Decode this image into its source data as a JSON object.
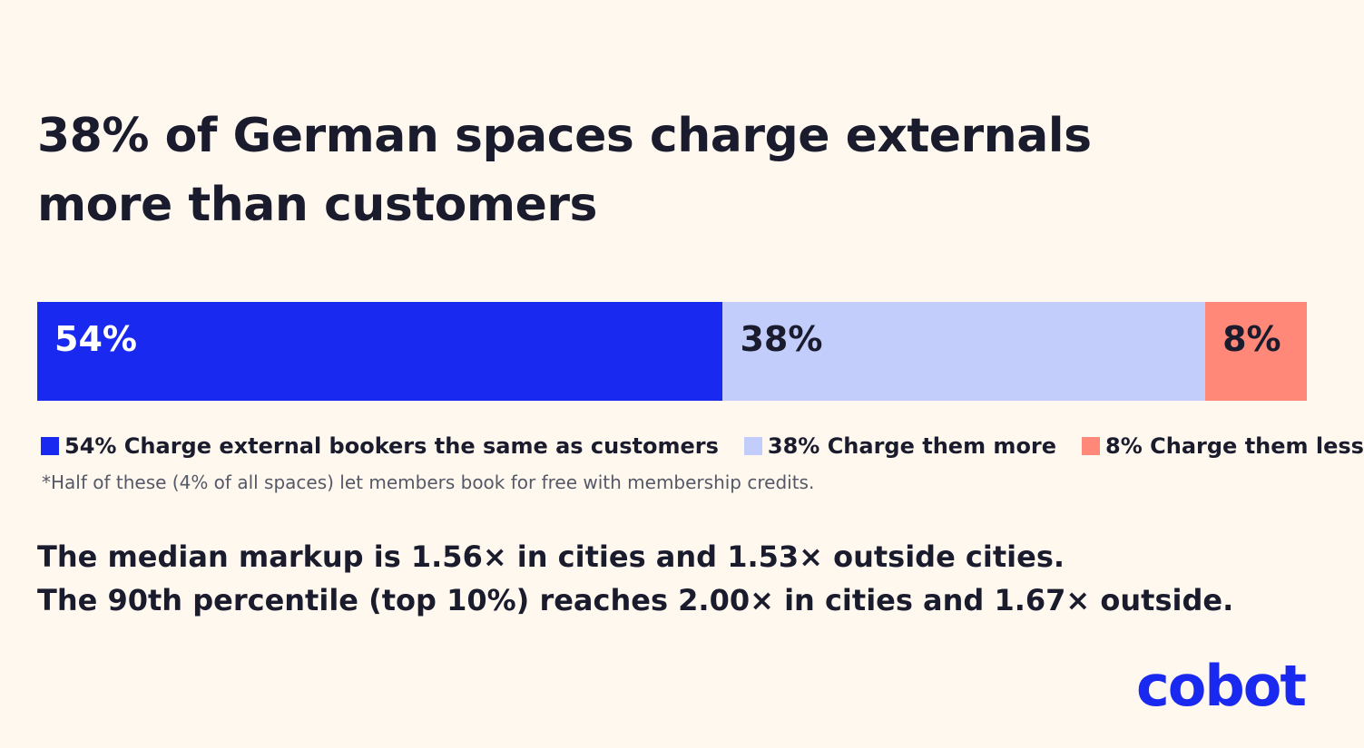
{
  "headline": {
    "line1": "38% of German spaces charge externals",
    "line2": "more than customers"
  },
  "chart_data": {
    "type": "bar",
    "orientation": "horizontal-stacked",
    "unit": "%",
    "segments": [
      {
        "value": 54,
        "label": "54%",
        "color": "#1a29f0",
        "label_color": "#ffffff",
        "legend": "54% Charge external bookers the same as customers"
      },
      {
        "value": 38,
        "label": "38%",
        "color": "#c2cdfc",
        "label_color": "#1a1c2e",
        "legend": "38% Charge them more"
      },
      {
        "value": 8,
        "label": "8%",
        "color": "#ff8878",
        "label_color": "#1a1c2e",
        "legend": "8% Charge them less"
      }
    ],
    "legend_position": "bottom"
  },
  "footnote": "*Half of these (4% of all spaces) let members book for free with membership credits.",
  "summary": {
    "line1": "The median markup is 1.56× in cities and 1.53× outside cities.",
    "line2": "The 90th percentile (top 10%) reaches 2.00× in cities and 1.67× outside."
  },
  "logo": {
    "text": "cobot",
    "color": "#1a29f0",
    "icon": "cobot-logo-icon"
  }
}
